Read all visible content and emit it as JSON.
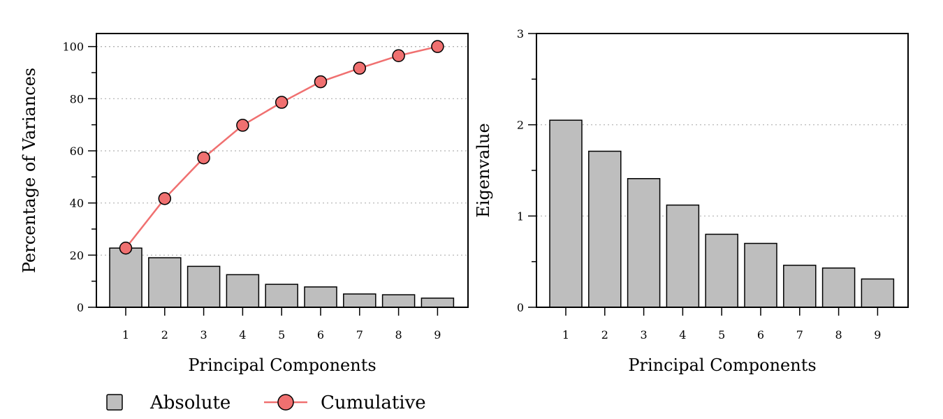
{
  "colors": {
    "bar": "#bebebe",
    "line": "#f07070",
    "grid": "#b0b0b0"
  },
  "chart_data": [
    {
      "type": "bar",
      "xlabel": "Principal Components",
      "ylabel": "Percentage of Variances",
      "categories": [
        "1",
        "2",
        "3",
        "4",
        "5",
        "6",
        "7",
        "8",
        "9"
      ],
      "ylim": [
        0,
        105
      ],
      "yticks": [
        "0",
        "20",
        "40",
        "60",
        "80",
        "100"
      ],
      "grid": "horizontal dotted",
      "series": [
        {
          "name": "Absolute",
          "kind": "bar",
          "values": [
            22.7,
            19.0,
            15.7,
            12.5,
            8.8,
            7.8,
            5.1,
            4.8,
            3.5
          ]
        },
        {
          "name": "Cumulative",
          "kind": "line",
          "values": [
            22.7,
            41.7,
            57.3,
            69.8,
            78.6,
            86.5,
            91.7,
            96.5,
            100.0
          ]
        }
      ],
      "legend": {
        "position": "bottom",
        "items": [
          "Absolute",
          "Cumulative"
        ]
      }
    },
    {
      "type": "bar",
      "xlabel": "Principal Components",
      "ylabel": "Eigenvalue",
      "categories": [
        "1",
        "2",
        "3",
        "4",
        "5",
        "6",
        "7",
        "8",
        "9"
      ],
      "ylim": [
        0,
        3
      ],
      "yticks": [
        "0",
        "1",
        "2",
        "3"
      ],
      "grid": "horizontal dotted",
      "series": [
        {
          "kind": "bar",
          "values": [
            2.05,
            1.71,
            1.41,
            1.12,
            0.8,
            0.7,
            0.46,
            0.43,
            0.31
          ]
        }
      ]
    }
  ]
}
